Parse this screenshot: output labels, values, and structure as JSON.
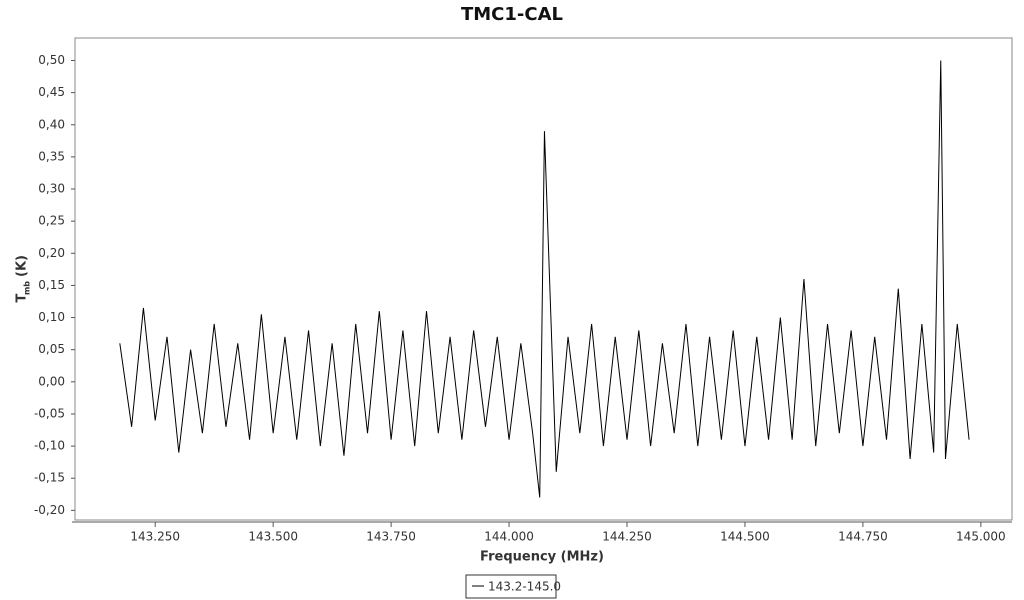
{
  "chart_data": {
    "type": "line",
    "title": "TMC1-CAL",
    "xlabel": "Frequency (MHz)",
    "ylabel": {
      "main": "T",
      "sub": "mb",
      "unit": "(K)"
    },
    "xlim": [
      143.08,
      145.066
    ],
    "ylim": [
      -0.215,
      0.535
    ],
    "xticks": [
      {
        "value": 143.25,
        "label": "143.250"
      },
      {
        "value": 143.5,
        "label": "143.500"
      },
      {
        "value": 143.75,
        "label": "143.750"
      },
      {
        "value": 144,
        "label": "144.000"
      },
      {
        "value": 144.25,
        "label": "144.250"
      },
      {
        "value": 144.5,
        "label": "144.500"
      },
      {
        "value": 144.75,
        "label": "144.750"
      },
      {
        "value": 145,
        "label": "145.000"
      }
    ],
    "yticks": [
      {
        "value": -0.2,
        "label": "-0,20"
      },
      {
        "value": -0.15,
        "label": "-0,15"
      },
      {
        "value": -0.1,
        "label": "-0,10"
      },
      {
        "value": -0.05,
        "label": "-0,05"
      },
      {
        "value": 0,
        "label": "0,00"
      },
      {
        "value": 0.05,
        "label": "0,05"
      },
      {
        "value": 0.1,
        "label": "0,10"
      },
      {
        "value": 0.15,
        "label": "0,15"
      },
      {
        "value": 0.2,
        "label": "0,20"
      },
      {
        "value": 0.25,
        "label": "0,25"
      },
      {
        "value": 0.3,
        "label": "0,30"
      },
      {
        "value": 0.35,
        "label": "0,35"
      },
      {
        "value": 0.4,
        "label": "0,40"
      },
      {
        "value": 0.45,
        "label": "0,45"
      },
      {
        "value": 0.5,
        "label": "0,50"
      }
    ],
    "x": [
      143.175,
      143.2,
      143.225,
      143.25,
      143.275,
      143.3,
      143.325,
      143.35,
      143.375,
      143.4,
      143.425,
      143.45,
      143.475,
      143.5,
      143.525,
      143.55,
      143.575,
      143.6,
      143.625,
      143.65,
      143.675,
      143.7,
      143.725,
      143.75,
      143.775,
      143.8,
      143.825,
      143.85,
      143.875,
      143.9,
      143.925,
      143.95,
      143.975,
      144,
      144.025,
      144.05,
      144.065,
      144.075,
      144.1,
      144.125,
      144.15,
      144.175,
      144.2,
      144.225,
      144.25,
      144.275,
      144.3,
      144.325,
      144.35,
      144.375,
      144.4,
      144.425,
      144.45,
      144.475,
      144.5,
      144.525,
      144.55,
      144.575,
      144.6,
      144.625,
      144.65,
      144.675,
      144.7,
      144.725,
      144.75,
      144.775,
      144.8,
      144.825,
      144.85,
      144.875,
      144.9,
      144.915,
      144.925,
      144.95,
      144.975
    ],
    "series": [
      {
        "name": "143.2-145.0",
        "color": "#000000",
        "values": [
          0.06,
          -0.07,
          0.115,
          -0.06,
          0.07,
          -0.11,
          0.05,
          -0.08,
          0.09,
          -0.07,
          0.06,
          -0.09,
          0.105,
          -0.08,
          0.07,
          -0.09,
          0.08,
          -0.1,
          0.06,
          -0.115,
          0.09,
          -0.08,
          0.11,
          -0.09,
          0.08,
          -0.1,
          0.11,
          -0.08,
          0.07,
          -0.09,
          0.08,
          -0.07,
          0.07,
          -0.09,
          0.06,
          -0.08,
          -0.18,
          0.39,
          -0.14,
          0.07,
          -0.08,
          0.09,
          -0.1,
          0.07,
          -0.09,
          0.08,
          -0.1,
          0.06,
          -0.08,
          0.09,
          -0.1,
          0.07,
          -0.09,
          0.08,
          -0.1,
          0.07,
          -0.09,
          0.1,
          -0.09,
          0.16,
          -0.1,
          0.09,
          -0.08,
          0.08,
          -0.1,
          0.07,
          -0.09,
          0.145,
          -0.12,
          0.09,
          -0.11,
          0.5,
          -0.12,
          0.09,
          -0.09
        ]
      }
    ]
  }
}
